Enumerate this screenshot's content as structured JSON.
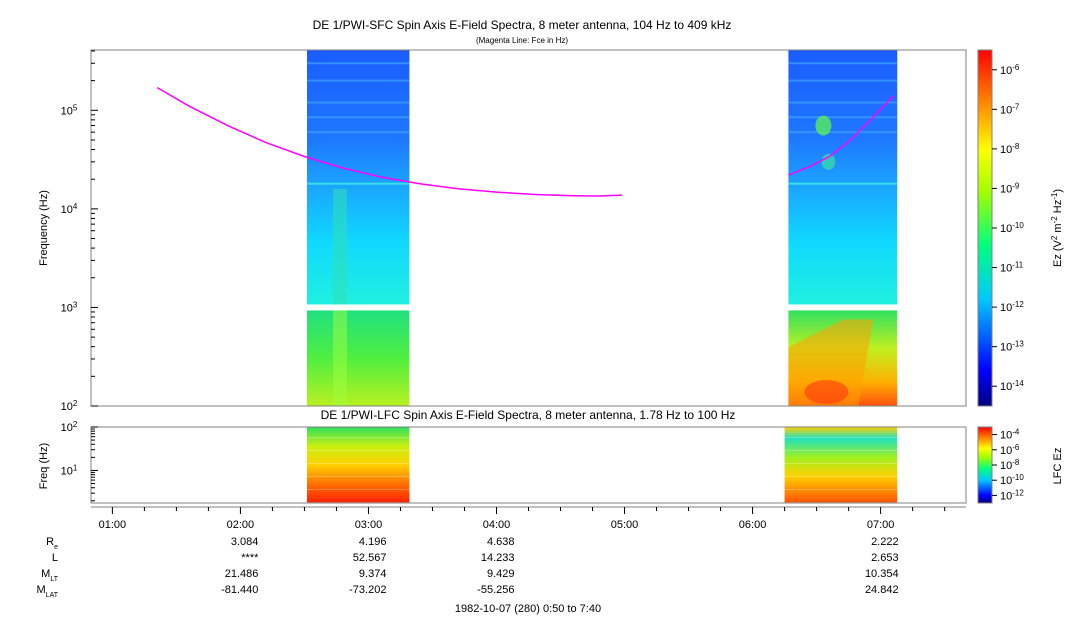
{
  "title": "DE 1/PWI-SFC  Spin Axis E-Field Spectra, 8 meter antenna, 104 Hz to 409 kHz",
  "subtitle": "(Magenta Line: Fce in Hz)",
  "lfc_title": "DE 1/PWI-LFC  Spin Axis E-Field Spectra, 8 meter antenna, 1.78 Hz to 100 Hz",
  "footer": "1982-10-07 (280) 0:50 to 7:40",
  "colors": {
    "fce_line": "#ff00ff"
  },
  "chart_data": [
    {
      "type": "heatmap",
      "panel": "SFC",
      "ylabel": "Frequency (Hz)",
      "yscale": "log",
      "ylim": [
        100,
        409000
      ],
      "y_ticks": [
        "10^2",
        "10^3",
        "10^4",
        "10^5"
      ],
      "x_ticks": [
        "01:00",
        "02:00",
        "03:00",
        "04:00",
        "05:00",
        "06:00",
        "07:00"
      ],
      "xlim_hours": [
        0.833,
        7.667
      ],
      "data_intervals_hours": [
        [
          2.52,
          3.32
        ],
        [
          6.28,
          7.13
        ]
      ],
      "colorbar": {
        "label_base": "Ez (V",
        "label_sup1": "2",
        "label_mid": " m",
        "label_sup2": "-2",
        "label_mid2": " Hz",
        "label_sup3": "-1",
        "label_end": ")",
        "ticks": [
          "-6",
          "-7",
          "-8",
          "-9",
          "-10",
          "-11",
          "-12",
          "-13",
          "-14"
        ]
      },
      "fce_line": {
        "name": "Fce",
        "segments": [
          {
            "x": [
              1.35,
              1.6,
              1.9,
              2.2,
              2.5,
              2.8,
              3.1,
              3.4,
              3.7,
              4.0,
              4.3,
              4.6,
              4.8,
              4.98
            ],
            "y": [
              170000,
              110000,
              70000,
              47000,
              34000,
              26000,
              21000,
              18000,
              16000,
              14800,
              14000,
              13600,
              13500,
              13800
            ]
          },
          {
            "x": [
              6.28,
              6.45,
              6.6,
              6.75,
              6.9,
              7.1
            ],
            "y": [
              22000,
              27000,
              34000,
              48000,
              75000,
              140000
            ]
          }
        ]
      }
    },
    {
      "type": "heatmap",
      "panel": "LFC",
      "ylabel": "Freq (Hz)",
      "yscale": "log",
      "ylim": [
        1.78,
        100
      ],
      "y_ticks": [
        "10^1",
        "10^2"
      ],
      "data_intervals_hours": [
        [
          2.52,
          3.32
        ],
        [
          6.25,
          7.13
        ]
      ],
      "colorbar": {
        "label": "LFC Ez",
        "ticks": [
          "-4",
          "-6",
          "-8",
          "-10",
          "-12"
        ]
      }
    }
  ],
  "ephemeris": {
    "labels": [
      {
        "main": "R",
        "sub": "e"
      },
      {
        "main": "L",
        "sub": ""
      },
      {
        "main": "M",
        "sub": "LT"
      },
      {
        "main": "M",
        "sub": "LAT"
      }
    ],
    "columns": [
      {
        "time": "02:00",
        "values": [
          "3.084",
          "****",
          "21.486",
          "-81.440"
        ]
      },
      {
        "time": "03:00",
        "values": [
          "4.196",
          "52.567",
          "9.374",
          "-73.202"
        ]
      },
      {
        "time": "04:00",
        "values": [
          "4.638",
          "14.233",
          "9.429",
          "-55.256"
        ]
      },
      {
        "time": "07:00",
        "values": [
          "2.222",
          "2.653",
          "10.354",
          "24.842"
        ]
      }
    ]
  }
}
